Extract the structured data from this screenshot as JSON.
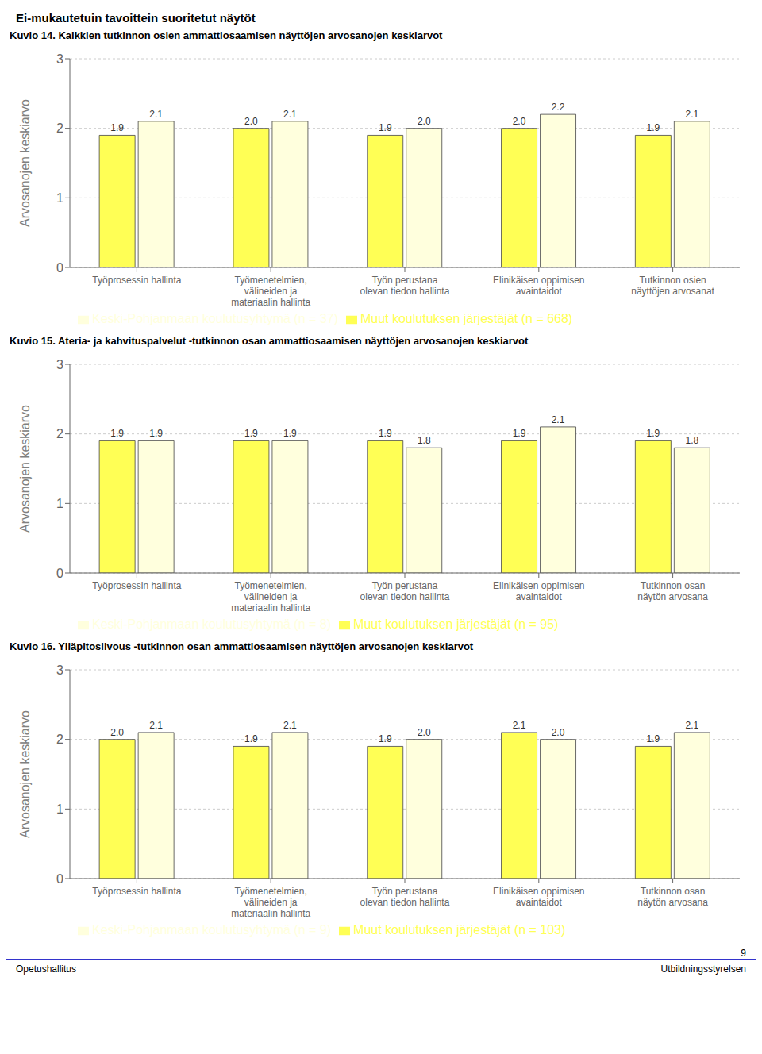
{
  "title": "Ei-mukautetuin tavoittein suoritetut näytöt",
  "annotations": [
    "Opetushallitus",
    "Utbildningsstyrelsen",
    "9"
  ],
  "chart_data": [
    {
      "type": "bar",
      "title": "Kuvio 14. Kaikkien tutkinnon osien ammattiosaamisen näyttöjen arvosanojen keskiarvot",
      "categories": [
        "Työprosessin hallinta",
        "Työmenetelmien,\nvälineiden ja\nmateriaalin hallinta",
        "Työn perustana\nolevan tiedon hallinta",
        "Elinikäisen oppimisen\navaintaidot",
        "Tutkinnon osien\nnäyttöjen arvosanat"
      ],
      "series": [
        {
          "name": "Muut koulutuksen järjestäjät (n = 668)",
          "color": "#ffff55",
          "values": [
            1.9,
            2.0,
            1.9,
            2.0,
            1.9
          ],
          "value_labels": [
            "1.9",
            "2.0",
            "1.9",
            "2.0",
            "1.9"
          ]
        },
        {
          "name": "Keski-Pohjanmaan koulutusyhtymä (n = 37)",
          "color": "#ffffdd",
          "values": [
            2.1,
            2.1,
            2.0,
            2.2,
            2.1
          ],
          "value_labels": [
            "2.1",
            "2.1",
            "2.0",
            "2.2",
            "2.1"
          ]
        }
      ],
      "ylabel": "Arvosanojen keskiarvo",
      "ylim": [
        0,
        3
      ],
      "yticks": [
        0,
        1,
        2,
        3
      ],
      "grid": true,
      "data_labels": true,
      "legend": "bottom"
    },
    {
      "type": "bar",
      "title": "Kuvio 15. Ateria- ja kahvituspalvelut -tutkinnon osan ammattiosaamisen näyttöjen arvosanojen keskiarvot",
      "categories": [
        "Työprosessin hallinta",
        "Työmenetelmien,\nvälineiden ja\nmateriaalin hallinta",
        "Työn perustana\nolevan tiedon hallinta",
        "Elinikäisen oppimisen\navaintaidot",
        "Tutkinnon osan\nnäytön arvosana"
      ],
      "series": [
        {
          "name": "Muut koulutuksen järjestäjät (n = 95)",
          "color": "#ffff55",
          "values": [
            1.9,
            1.9,
            1.9,
            1.9,
            1.9
          ],
          "value_labels": [
            "1.9",
            "1.9",
            "1.9",
            "1.9",
            "1.9"
          ]
        },
        {
          "name": "Keski-Pohjanmaan koulutusyhtymä (n = 8)",
          "color": "#ffffdd",
          "values": [
            1.9,
            1.9,
            1.8,
            2.1,
            1.8
          ],
          "value_labels": [
            "1.9",
            "1.9",
            "1.8",
            "2.1",
            "1.8"
          ]
        }
      ],
      "ylabel": "Arvosanojen keskiarvo",
      "ylim": [
        0,
        3
      ],
      "yticks": [
        0,
        1,
        2,
        3
      ],
      "grid": true,
      "data_labels": true,
      "legend": "bottom"
    },
    {
      "type": "bar",
      "title": "Kuvio 16. Ylläpitosiivous -tutkinnon osan ammattiosaamisen näyttöjen arvosanojen keskiarvot",
      "categories": [
        "Työprosessin hallinta",
        "Työmenetelmien,\nvälineiden ja\nmateriaalin hallinta",
        "Työn perustana\nolevan tiedon hallinta",
        "Elinikäisen oppimisen\navaintaidot",
        "Tutkinnon osan\nnäytön arvosana"
      ],
      "series": [
        {
          "name": "Muut koulutuksen järjestäjät (n = 103)",
          "color": "#ffff55",
          "values": [
            2.0,
            1.9,
            1.9,
            2.1,
            1.9
          ],
          "value_labels": [
            "2.0",
            "1.9",
            "1.9",
            "2.1",
            "1.9"
          ]
        },
        {
          "name": "Keski-Pohjanmaan koulutusyhtymä (n = 9)",
          "color": "#ffffdd",
          "values": [
            2.1,
            2.1,
            2.0,
            2.0,
            2.1
          ],
          "value_labels": [
            "2.1",
            "2.1",
            "2.0",
            "2.0",
            "2.1"
          ]
        }
      ],
      "ylabel": "Arvosanojen keskiarvo",
      "ylim": [
        0,
        3
      ],
      "yticks": [
        0,
        1,
        2,
        3
      ],
      "grid": true,
      "data_labels": true,
      "legend": "bottom"
    }
  ]
}
